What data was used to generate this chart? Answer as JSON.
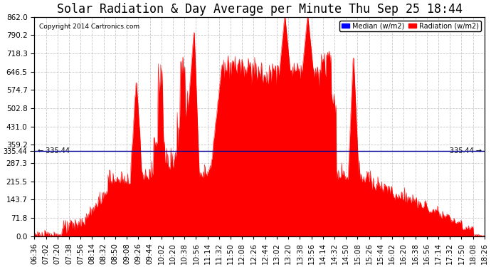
{
  "title": "Solar Radiation & Day Average per Minute Thu Sep 25 18:44",
  "copyright": "Copyright 2014 Cartronics.com",
  "legend_median": "Median (w/m2)",
  "legend_radiation": "Radiation (w/m2)",
  "ymin": 0.0,
  "ymax": 862.0,
  "yticks": [
    0.0,
    71.8,
    143.7,
    215.5,
    287.3,
    359.2,
    431.0,
    502.8,
    574.7,
    646.5,
    718.3,
    790.2,
    862.0
  ],
  "median_line": 335.44,
  "fill_color": "#FF0000",
  "line_color": "#FF0000",
  "median_color": "#000099",
  "background_color": "#FFFFFF",
  "grid_color": "#BBBBBB",
  "title_fontsize": 12,
  "tick_fontsize": 7.5,
  "xlabel_rotation": 90,
  "xtick_labels": [
    "06:36",
    "07:02",
    "07:20",
    "07:38",
    "07:56",
    "08:14",
    "08:32",
    "08:50",
    "09:08",
    "09:26",
    "09:44",
    "10:02",
    "10:20",
    "10:38",
    "10:56",
    "11:14",
    "11:32",
    "11:50",
    "12:08",
    "12:26",
    "12:44",
    "13:02",
    "13:20",
    "13:38",
    "13:56",
    "14:14",
    "14:32",
    "14:50",
    "15:08",
    "15:26",
    "15:44",
    "16:02",
    "16:20",
    "16:38",
    "16:56",
    "17:14",
    "17:32",
    "17:50",
    "18:08",
    "18:26"
  ]
}
